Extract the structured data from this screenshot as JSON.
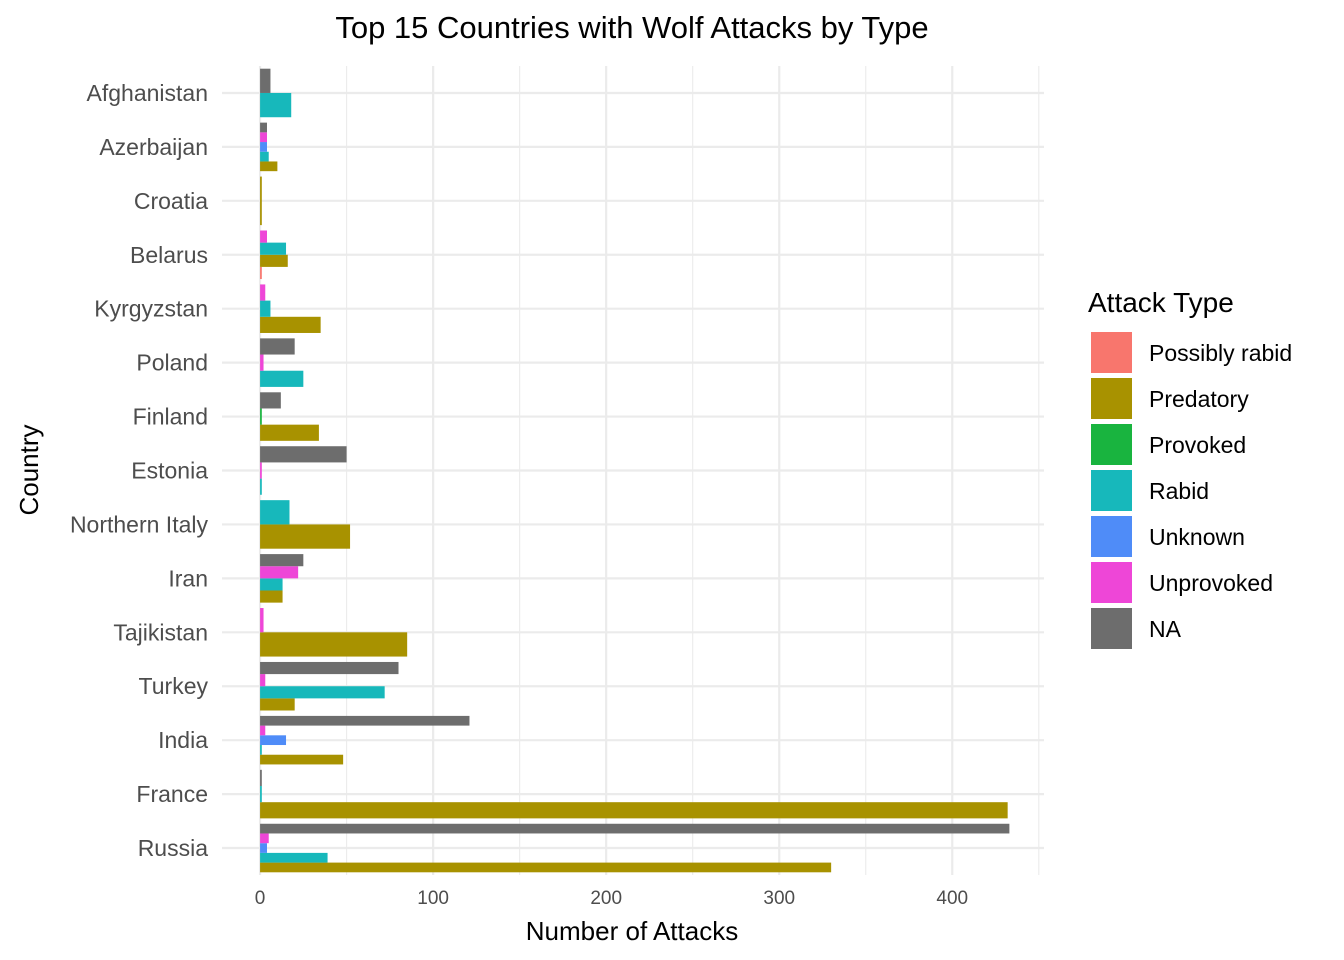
{
  "chart_data": {
    "type": "bar",
    "orientation": "horizontal",
    "title": "Top 15 Countries with Wolf Attacks by Type",
    "xlabel": "Number of Attacks",
    "ylabel": "Country",
    "xlim": [
      -22,
      453
    ],
    "xticks": [
      0,
      100,
      200,
      300,
      400
    ],
    "grid": true,
    "legend": {
      "title": "Attack Type",
      "placement": "right"
    },
    "categories": [
      "Afghanistan",
      "Azerbaijan",
      "Croatia",
      "Belarus",
      "Kyrgyzstan",
      "Poland",
      "Finland",
      "Estonia",
      "Northern Italy",
      "Iran",
      "Tajikistan",
      "Turkey",
      "India",
      "France",
      "Russia"
    ],
    "series": [
      {
        "name": "Possibly rabid",
        "color": "#F8766D",
        "values": [
          0,
          0,
          0,
          1,
          0,
          0,
          0,
          0,
          0,
          0,
          0,
          0,
          0,
          0,
          0
        ]
      },
      {
        "name": "Predatory",
        "color": "#A89200",
        "values": [
          0,
          10,
          1,
          16,
          35,
          0,
          34,
          0,
          52,
          13,
          85,
          20,
          48,
          432,
          330
        ]
      },
      {
        "name": "Provoked",
        "color": "#19B43F",
        "values": [
          0,
          0,
          0,
          0,
          0,
          0,
          1,
          0,
          0,
          0,
          0,
          0,
          0,
          0,
          0
        ]
      },
      {
        "name": "Rabid",
        "color": "#17B8BB",
        "values": [
          18,
          5,
          0,
          15,
          6,
          25,
          0,
          1,
          17,
          13,
          0,
          72,
          1,
          1,
          39
        ]
      },
      {
        "name": "Unknown",
        "color": "#4F8CF8",
        "values": [
          0,
          4,
          0,
          0,
          0,
          0,
          0,
          0,
          0,
          0,
          0,
          0,
          15,
          0,
          4
        ]
      },
      {
        "name": "Unprovoked",
        "color": "#EE46D7",
        "values": [
          0,
          4,
          0,
          4,
          3,
          2,
          0,
          1,
          0,
          22,
          2,
          3,
          3,
          0,
          5
        ]
      },
      {
        "name": "NA",
        "color": "#6D6D6D",
        "values": [
          6,
          4,
          0,
          0,
          0,
          20,
          12,
          50,
          0,
          25,
          0,
          80,
          121,
          1,
          433
        ]
      }
    ]
  }
}
